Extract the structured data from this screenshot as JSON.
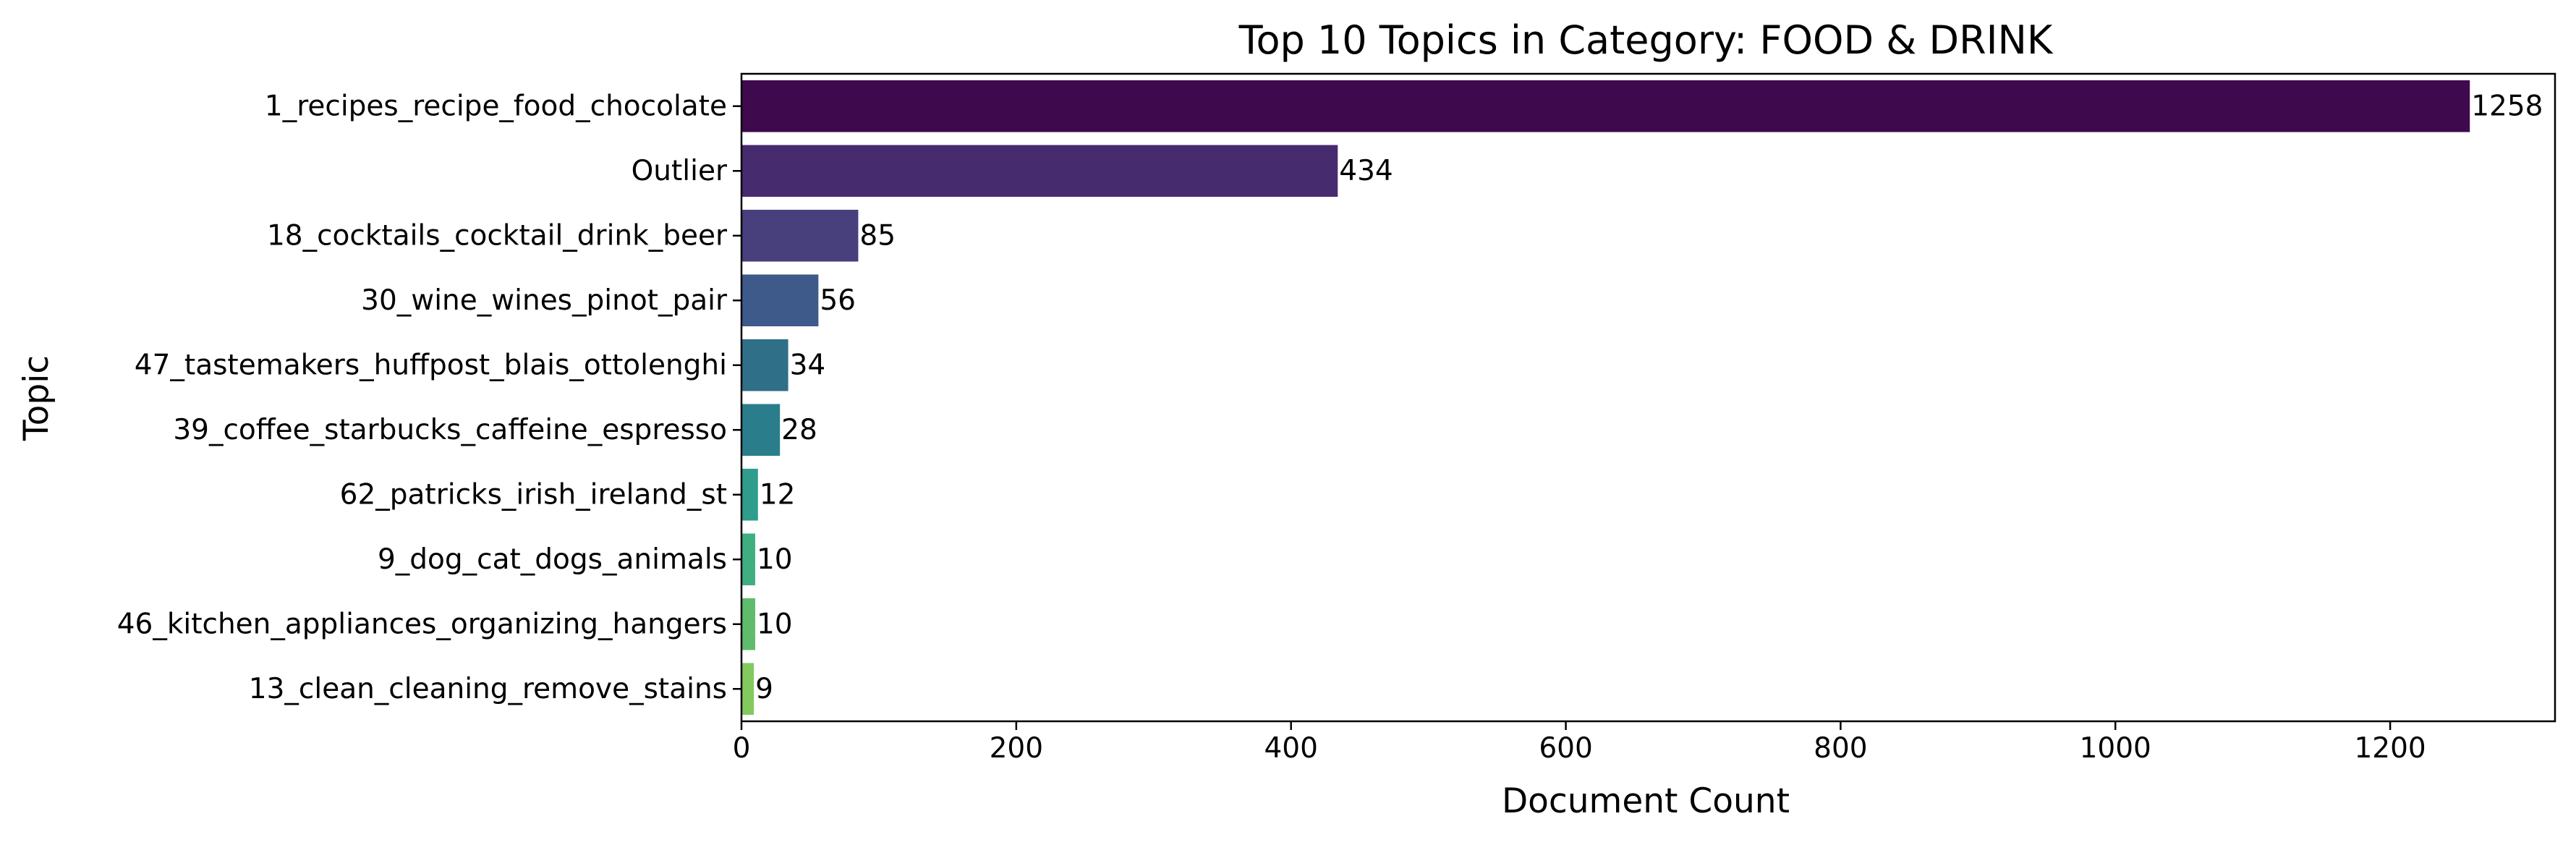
{
  "chart_data": {
    "type": "bar",
    "orientation": "horizontal",
    "title": "Top 10 Topics in Category: FOOD & DRINK",
    "xlabel": "Document Count",
    "ylabel": "Topic",
    "categories": [
      "1_recipes_recipe_food_chocolate",
      "Outlier",
      "18_cocktails_cocktail_drink_beer",
      "30_wine_wines_pinot_pair",
      "47_tastemakers_huffpost_blais_ottolenghi",
      "39_coffee_starbucks_caffeine_espresso",
      "62_patricks_irish_ireland_st",
      "9_dog_cat_dogs_animals",
      "46_kitchen_appliances_organizing_hangers",
      "13_clean_cleaning_remove_stains"
    ],
    "values": [
      1258,
      434,
      85,
      56,
      34,
      28,
      12,
      10,
      10,
      9
    ],
    "colors": [
      "#440154",
      "#482878",
      "#3e4989",
      "#31688e",
      "#26828e",
      "#1f9e89",
      "#35b779",
      "#6ece58",
      "#b5de2b",
      "#fde725"
    ],
    "bar_colors": [
      "#3f0a4d",
      "#472b6f",
      "#483f7d",
      "#3e5a8a",
      "#306f88",
      "#2a7e8b",
      "#2f9c8c",
      "#3faf82",
      "#5ebc6c",
      "#82c95e"
    ],
    "xlim": [
      0,
      1320
    ],
    "xticks": [
      0,
      200,
      400,
      600,
      800,
      1000,
      1200
    ],
    "grid": false,
    "legend": "none",
    "palette": "viridis"
  }
}
